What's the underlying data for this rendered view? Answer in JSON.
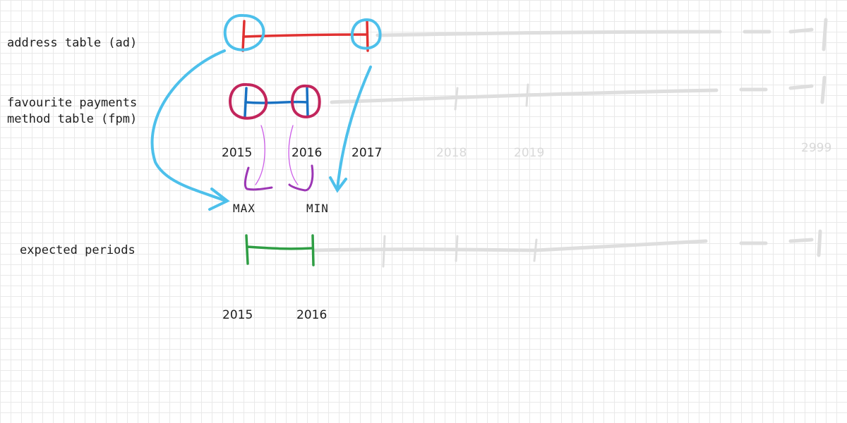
{
  "rows": {
    "address_table": "address table (ad)",
    "fpm_line1": "favourite payments",
    "fpm_line2": "method table (fpm)",
    "expected_periods": "expected periods"
  },
  "top_years": [
    "2015",
    "2016",
    "2017",
    "2018",
    "2019",
    "2999"
  ],
  "markers": {
    "max": "MAX",
    "min": "MIN"
  },
  "bottom_years": [
    "2015",
    "2016"
  ],
  "colors": {
    "address_line": "#e03131",
    "fpm_line": "#1971c2",
    "fpm_circles": "#c2255c",
    "address_circles": "#4dc0eb",
    "arrows": "#4dc0eb",
    "brackets": "#9c36b5",
    "expected_line": "#2f9e44",
    "future_line": "#dedede",
    "grid": "#e9e9e9"
  }
}
